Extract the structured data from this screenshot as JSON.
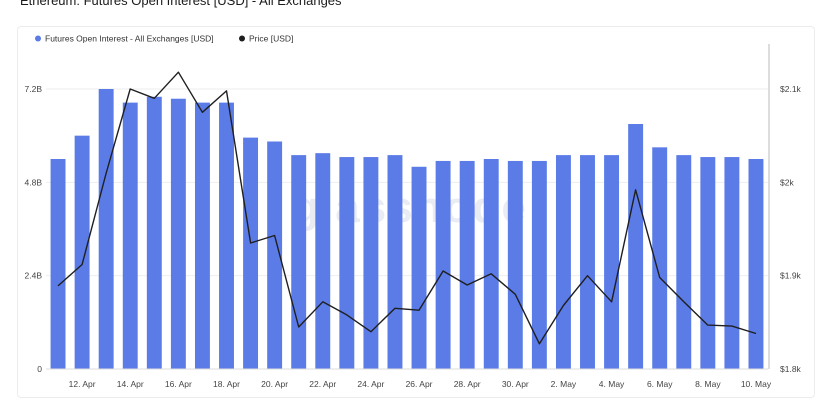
{
  "page": {
    "title": "Ethereum: Futures Open Interest [USD] - All Exchanges"
  },
  "watermark": "glassnode",
  "colors": {
    "bar": "#5b7be7",
    "line": "#1f1f1f",
    "grid": "#eeeeee",
    "axis_divider": "#bbbbbb"
  },
  "chart_data": {
    "type": "bar",
    "title": "Ethereum: Futures Open Interest [USD] - All Exchanges",
    "legend_position": "top-left",
    "grid": true,
    "categories": [
      "11. Apr",
      "12. Apr",
      "13. Apr",
      "14. Apr",
      "15. Apr",
      "16. Apr",
      "17. Apr",
      "18. Apr",
      "19. Apr",
      "20. Apr",
      "21. Apr",
      "22. Apr",
      "23. Apr",
      "24. Apr",
      "25. Apr",
      "26. Apr",
      "27. Apr",
      "28. Apr",
      "29. Apr",
      "30. Apr",
      "1. May",
      "2. May",
      "3. May",
      "4. May",
      "5. May",
      "6. May",
      "7. May",
      "8. May",
      "9. May",
      "10. May"
    ],
    "x_tick_labels": [
      "12. Apr",
      "14. Apr",
      "16. Apr",
      "18. Apr",
      "20. Apr",
      "22. Apr",
      "24. Apr",
      "26. Apr",
      "28. Apr",
      "30. Apr",
      "2. May",
      "4. May",
      "6. May",
      "8. May",
      "10. May"
    ],
    "x_tick_indices": [
      1,
      3,
      5,
      7,
      9,
      11,
      13,
      15,
      17,
      19,
      21,
      23,
      25,
      27,
      29
    ],
    "y_left": {
      "ticks": [
        "0",
        "2.4B",
        "4.8B",
        "7.2B"
      ],
      "tick_values": [
        0,
        2.4,
        4.8,
        7.2
      ],
      "min": 0,
      "max": 7.2,
      "unit": "B"
    },
    "y_right": {
      "ticks": [
        "$1.8k",
        "$1.9k",
        "$2k",
        "$2.1k"
      ],
      "tick_values": [
        1800,
        1900,
        2000,
        2100
      ],
      "min": 1800,
      "max": 2100
    },
    "series": [
      {
        "name": "Futures Open Interest - All Exchanges [USD]",
        "type": "bar",
        "axis": "left",
        "values": [
          5.4,
          6.0,
          7.2,
          6.85,
          7.0,
          6.95,
          6.85,
          6.85,
          5.95,
          5.85,
          5.5,
          5.55,
          5.45,
          5.45,
          5.5,
          5.2,
          5.35,
          5.35,
          5.4,
          5.35,
          5.35,
          5.5,
          5.5,
          5.5,
          6.3,
          5.7,
          5.5,
          5.45,
          5.45,
          5.4
        ]
      },
      {
        "name": "Price [USD]",
        "type": "line",
        "axis": "right",
        "values": [
          1889,
          1912,
          2010,
          2100,
          2090,
          2118,
          2075,
          2098,
          1935,
          1943,
          1845,
          1872,
          1858,
          1840,
          1865,
          1863,
          1905,
          1890,
          1902,
          1880,
          1827,
          1868,
          1900,
          1872,
          1992,
          1898,
          1872,
          1847,
          1846,
          1838
        ]
      }
    ]
  }
}
